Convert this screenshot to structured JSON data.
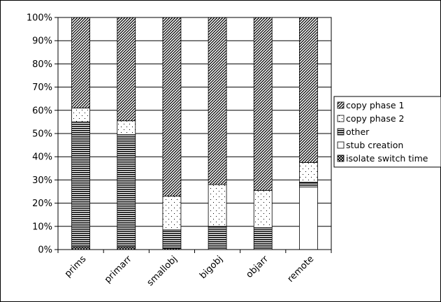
{
  "chart_data": {
    "type": "bar",
    "stacked": true,
    "percent": true,
    "categories": [
      "prims",
      "primarr",
      "smallobj",
      "bigobj",
      "objarr",
      "remote"
    ],
    "series": [
      {
        "name": "isolate switch time",
        "pattern": "cross",
        "values": [
          1,
          1,
          0.5,
          0,
          0,
          0
        ]
      },
      {
        "name": "stub creation",
        "pattern": "white",
        "values": [
          0,
          0,
          0,
          0,
          0,
          27
        ]
      },
      {
        "name": "other",
        "pattern": "hlines",
        "values": [
          54,
          48.5,
          8,
          10,
          9.5,
          2
        ]
      },
      {
        "name": "copy phase 2",
        "pattern": "dots",
        "values": [
          6,
          6,
          14.5,
          18,
          16,
          8.5
        ]
      },
      {
        "name": "copy phase 1",
        "pattern": "diagonal",
        "values": [
          39,
          44.5,
          77,
          72,
          74.5,
          62.5
        ]
      }
    ],
    "legend_order": [
      "copy phase 1",
      "copy phase 2",
      "other",
      "stub creation",
      "isolate switch time"
    ],
    "yticks": [
      "0%",
      "10%",
      "20%",
      "30%",
      "40%",
      "50%",
      "60%",
      "70%",
      "80%",
      "90%",
      "100%"
    ],
    "ylim": [
      0,
      100
    ],
    "title": "",
    "xlabel": "",
    "ylabel": "",
    "legend_position": "right",
    "colors": {
      "stroke": "#000000",
      "background": "#ffffff",
      "fill": "#ffffff"
    }
  }
}
